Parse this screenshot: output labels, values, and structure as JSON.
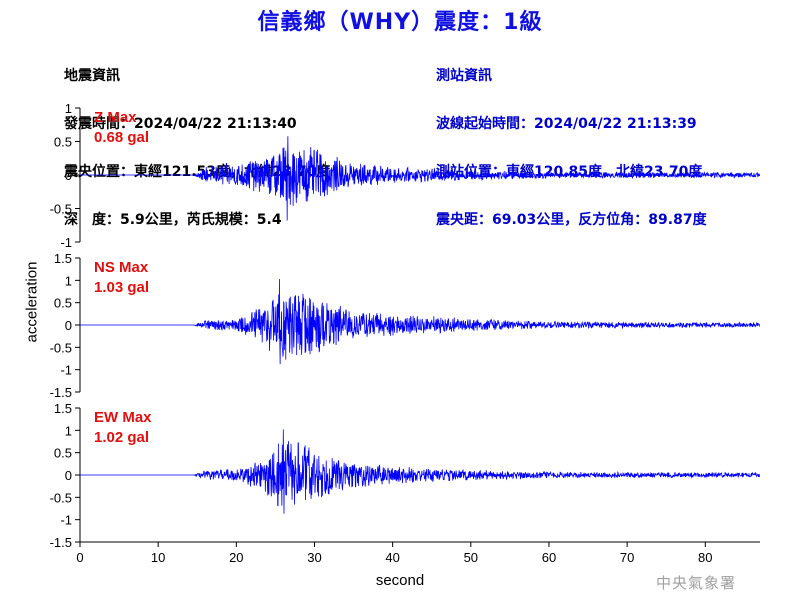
{
  "header": {
    "title": "信義鄉（WHY）震度：1級"
  },
  "quake_info": {
    "heading": "地震資訊",
    "origin_time": "發震時間：2024/04/22 21:13:40",
    "epicenter": "震央位置：東經121.53度，北緯23.70度",
    "depth_magnitude": "深　度：5.9公里，芮氏規模：5.4"
  },
  "station_info": {
    "heading": "測站資訊",
    "wave_start": "波線起始時間：2024/04/22 21:13:39",
    "station_location": "測站位置：東經120.85度，北緯23.70度",
    "distance_azimuth": "震央距：69.03公里，反方位角：89.87度"
  },
  "footer": {
    "credit": "中央氣象署"
  },
  "colors": {
    "title": "#1010e0",
    "station_text": "#0000c8",
    "trace": "#0000ff",
    "peak_label": "#e01010",
    "credit": "#a0a0a0"
  },
  "chart_data": {
    "type": "line",
    "xlabel": "second",
    "ylabel": "acceleration",
    "xlim": [
      0,
      87
    ],
    "xticks": [
      "0",
      "10",
      "20",
      "30",
      "40",
      "50",
      "60",
      "70",
      "80"
    ],
    "grid": false,
    "panels": [
      {
        "name": "Z",
        "peak_label": "Z Max",
        "peak_value": "0.68 gal",
        "ylim": [
          -1,
          1
        ],
        "yticks": [
          "1",
          "0.5",
          "0",
          "-0.5",
          "-1"
        ],
        "onset_s": 14.5,
        "peak_time_s": 26.5,
        "peak_amplitude": 0.68,
        "envelope": [
          [
            0,
            0
          ],
          [
            14.5,
            0
          ],
          [
            16,
            0.12
          ],
          [
            20,
            0.2
          ],
          [
            24,
            0.3
          ],
          [
            26,
            0.5
          ],
          [
            29,
            0.45
          ],
          [
            31,
            0.35
          ],
          [
            35,
            0.2
          ],
          [
            40,
            0.12
          ],
          [
            50,
            0.08
          ],
          [
            60,
            0.05
          ],
          [
            87,
            0.04
          ]
        ]
      },
      {
        "name": "NS",
        "peak_label": "NS Max",
        "peak_value": "1.03 gal",
        "ylim": [
          -1.5,
          1.5
        ],
        "yticks": [
          "1.5",
          "1",
          "0.5",
          "0",
          "-0.5",
          "-1",
          "-1.5"
        ],
        "onset_s": 14.5,
        "peak_time_s": 25.5,
        "peak_amplitude": 1.03,
        "envelope": [
          [
            0,
            0
          ],
          [
            14.5,
            0
          ],
          [
            16,
            0.1
          ],
          [
            20,
            0.15
          ],
          [
            22,
            0.3
          ],
          [
            24,
            0.6
          ],
          [
            26,
            0.9
          ],
          [
            29,
            0.8
          ],
          [
            32,
            0.55
          ],
          [
            35,
            0.35
          ],
          [
            40,
            0.25
          ],
          [
            50,
            0.15
          ],
          [
            60,
            0.08
          ],
          [
            87,
            0.05
          ]
        ]
      },
      {
        "name": "EW",
        "peak_label": "EW Max",
        "peak_value": "1.02 gal",
        "ylim": [
          -1.5,
          1.5
        ],
        "yticks": [
          "1.5",
          "1",
          "0.5",
          "0",
          "-0.5",
          "-1",
          "-1.5"
        ],
        "onset_s": 14.5,
        "peak_time_s": 26.0,
        "peak_amplitude": 1.02,
        "envelope": [
          [
            0,
            0
          ],
          [
            14.5,
            0
          ],
          [
            16,
            0.1
          ],
          [
            20,
            0.15
          ],
          [
            23,
            0.35
          ],
          [
            26,
            0.85
          ],
          [
            29,
            0.7
          ],
          [
            32,
            0.45
          ],
          [
            35,
            0.3
          ],
          [
            40,
            0.2
          ],
          [
            50,
            0.12
          ],
          [
            60,
            0.07
          ],
          [
            87,
            0.05
          ]
        ]
      }
    ]
  }
}
